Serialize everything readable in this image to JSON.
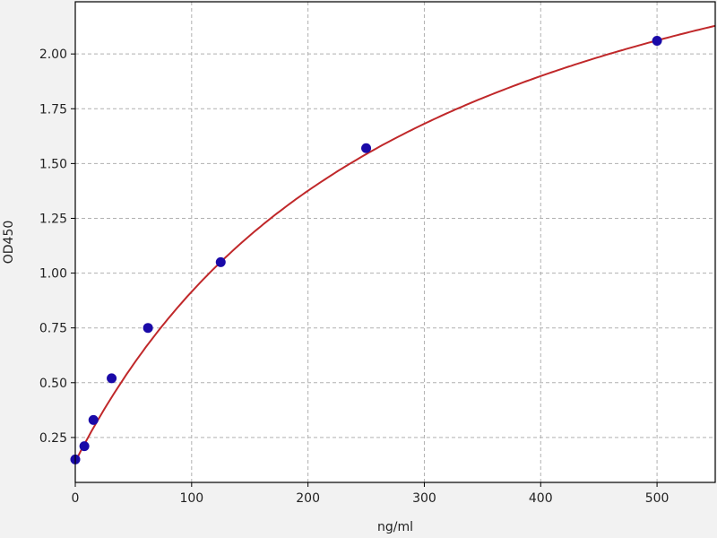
{
  "chart_data": {
    "type": "scatter",
    "title": "",
    "xlabel": "ng/ml",
    "ylabel": "OD450",
    "xlim": [
      0,
      550
    ],
    "ylim": [
      0.045,
      2.238
    ],
    "xticks": [
      0,
      100,
      200,
      300,
      400,
      500
    ],
    "xtick_labels": [
      "0",
      "100",
      "200",
      "300",
      "400",
      "500"
    ],
    "yticks": [
      0.25,
      0.5,
      0.75,
      1.0,
      1.25,
      1.5,
      1.75,
      2.0
    ],
    "ytick_labels": [
      "0.25",
      "0.50",
      "0.75",
      "1.00",
      "1.25",
      "1.50",
      "1.75",
      "2.00"
    ],
    "grid": true,
    "points": [
      {
        "x": 0,
        "y": 0.15
      },
      {
        "x": 7.8,
        "y": 0.21
      },
      {
        "x": 15.6,
        "y": 0.33
      },
      {
        "x": 31.25,
        "y": 0.52
      },
      {
        "x": 62.5,
        "y": 0.75
      },
      {
        "x": 125,
        "y": 1.05
      },
      {
        "x": 250,
        "y": 1.57
      },
      {
        "x": 500,
        "y": 2.06
      }
    ],
    "fit_curve": {
      "model": "y = a + V*x/(K+x)",
      "a": 0.14,
      "V": 3.05,
      "K": 293.6
    },
    "colors": {
      "points": "#1a0aa8",
      "curve": "#c0282a",
      "grid": "#b0b0b0",
      "background": "#ffffff"
    }
  }
}
